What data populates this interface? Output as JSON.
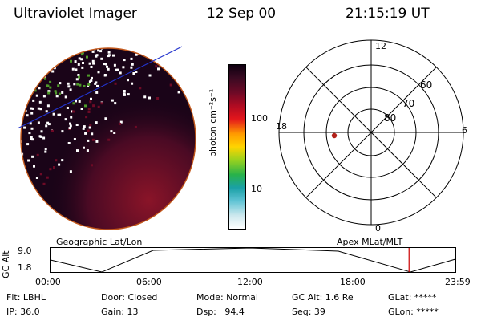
{
  "header": {
    "title": "Ultraviolet Imager",
    "date": "12 Sep 00",
    "time": "21:15:19 UT"
  },
  "colorbar": {
    "unit_label": "photon cm⁻²s⁻¹",
    "ticks": [
      "100",
      "10"
    ],
    "colors": [
      "#ffffff",
      "#cde8ee",
      "#5fc3d4",
      "#1aa0a6",
      "#28b24a",
      "#9ad21e",
      "#ffd400",
      "#ff9a00",
      "#e3161c",
      "#b00b22",
      "#6e0a26",
      "#3a0a22",
      "#0e0010"
    ]
  },
  "polar_plot": {
    "mlt_labels": {
      "top": "12",
      "left": "18",
      "right": "6",
      "bottom": "0"
    },
    "lat_labels": [
      "60",
      "70",
      "80"
    ],
    "marker_color": "#b3221a"
  },
  "image_labels": {
    "geographic": "Geographic Lat/Lon",
    "apex": "Apex MLat/MLT"
  },
  "timeline": {
    "ylabel": "GC Alt",
    "y_ticks": [
      "9.0",
      "1.8"
    ],
    "x_ticks": [
      "00:00",
      "06:00",
      "12:00",
      "18:00",
      "23:59"
    ],
    "current_marker_color": "#cc0000",
    "current_time_fraction": 0.8856
  },
  "status": {
    "flt": "Flt: LBHL",
    "ip": "IP: 36.0",
    "door": "Door: Closed",
    "gain": "Gain: 13",
    "mode": "Mode: Normal",
    "dsp": "Dsp:   94.4",
    "gc_alt": "GC Alt: 1.6 Re",
    "seq": "Seq: 39",
    "glat": "GLat: *****",
    "glon": "GLon: *****"
  }
}
